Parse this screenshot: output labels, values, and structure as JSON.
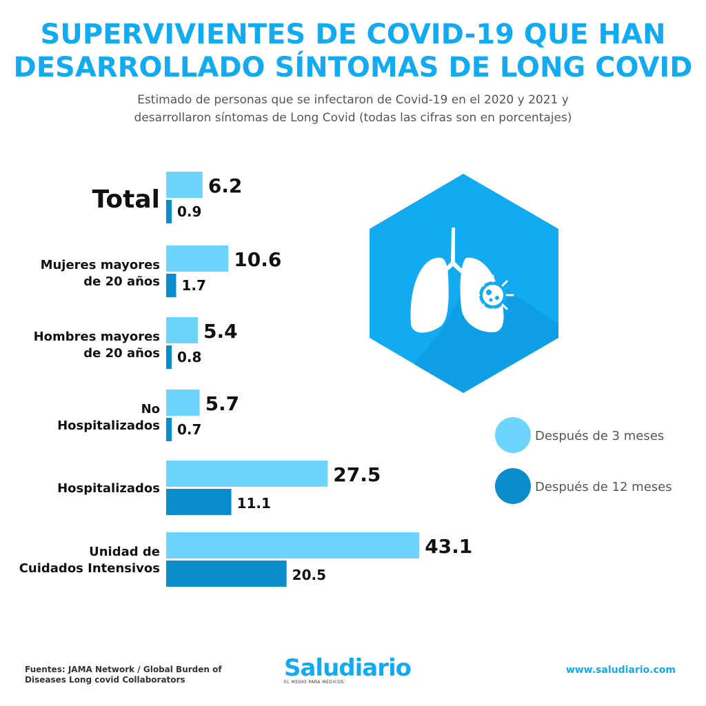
{
  "header": {
    "title_line1": "SUPERVIVIENTES DE COVID-19 QUE HAN",
    "title_line2": "DESARROLLADO SÍNTOMAS DE LONG COVID",
    "subtitle_line1": "Estimado de personas que se infectaron de Covid-19 en el 2020 y 2021 y",
    "subtitle_line2": "desarrollaron síntomas de Long Covid (todas las cifras son en porcentajes)"
  },
  "chart_data": {
    "type": "bar",
    "orientation": "horizontal",
    "categories": [
      [
        "Total"
      ],
      [
        "Mujeres mayores",
        "de 20 años"
      ],
      [
        "Hombres mayores",
        "de 20 años"
      ],
      [
        "No",
        "Hospitalizados"
      ],
      [
        "Hospitalizados"
      ],
      [
        "Unidad de",
        "Cuidados Intensivos"
      ]
    ],
    "series": [
      {
        "name": "Después de 3 meses",
        "color": "#6dd4fb",
        "values": [
          6.2,
          10.6,
          5.4,
          5.7,
          27.5,
          43.1
        ]
      },
      {
        "name": "Después de 12 meses",
        "color": "#0b8dcb",
        "values": [
          0.9,
          1.7,
          0.8,
          0.7,
          11.1,
          20.5
        ]
      }
    ],
    "legend_position": "right"
  },
  "icon": {
    "name": "lungs-virus-icon",
    "hex_color": "#12aaf0"
  },
  "footer": {
    "source_line1": "Fuentes: JAMA Network / Global Burden of",
    "source_line2": "Diseases Long covid Collaborators",
    "brand": "Saludiario",
    "brand_tagline": "EL MEDIO PARA MÉDICOS",
    "url": "www.saludiario.com"
  }
}
